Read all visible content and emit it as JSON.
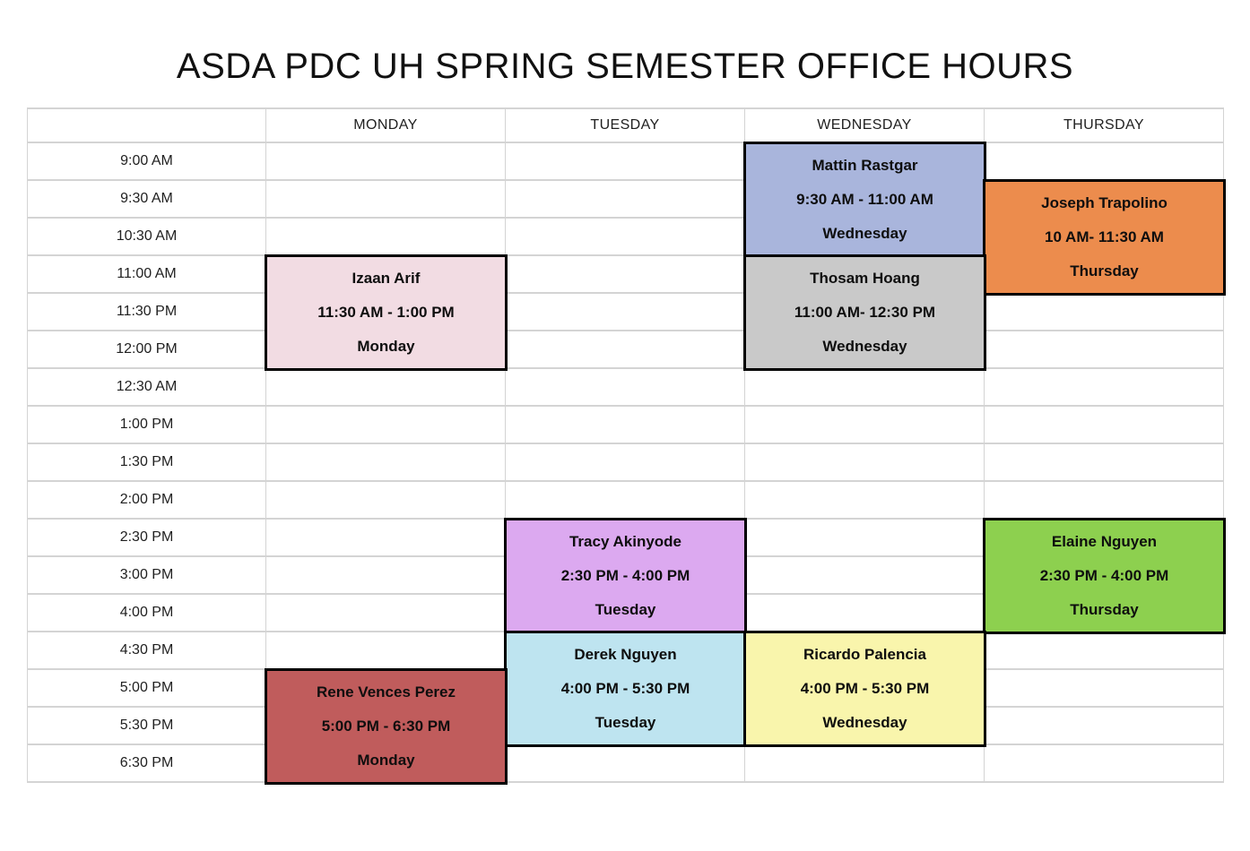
{
  "title": "ASDA PDC UH SPRING SEMESTER OFFICE HOURS",
  "chart_data": {
    "type": "table",
    "title": "ASDA PDC UH SPRING SEMESTER OFFICE HOURS",
    "columns": [
      "",
      "MONDAY",
      "TUESDAY",
      "WEDNESDAY",
      "THURSDAY"
    ],
    "time_slots": [
      "9:00 AM",
      "9:30 AM",
      "10:30 AM",
      "11:00 AM",
      "11:30 PM",
      "12:00 PM",
      "12:30 AM",
      "1:00 PM",
      "1:30 PM",
      "2:00 PM",
      "2:30 PM",
      "3:00 PM",
      "4:00 PM",
      "4:30 PM",
      "5:00 PM",
      "5:30 PM",
      "6:30 PM"
    ],
    "events": [
      {
        "name": "Mattin Rastgar",
        "time": "9:30 AM - 11:00 AM",
        "day": "Wednesday",
        "column": 3,
        "row_start": 1,
        "row_span": 3,
        "fill": "#A9B5DC"
      },
      {
        "name": "Joseph Trapolino",
        "time": "10 AM- 11:30 AM",
        "day": "Thursday",
        "column": 4,
        "row_start": 2,
        "row_span": 3,
        "fill": "#EC8C4D"
      },
      {
        "name": "Izaan Arif",
        "time": "11:30 AM - 1:00 PM",
        "day": "Monday",
        "column": 1,
        "row_start": 4,
        "row_span": 3,
        "fill": "#F2DCE3"
      },
      {
        "name": "Thosam Hoang",
        "time": "11:00 AM- 12:30 PM",
        "day": "Wednesday",
        "column": 3,
        "row_start": 4,
        "row_span": 3,
        "fill": "#C9C9C9"
      },
      {
        "name": "Tracy Akinyode",
        "time": "2:30 PM - 4:00 PM",
        "day": "Tuesday",
        "column": 2,
        "row_start": 11,
        "row_span": 3,
        "fill": "#DCA9F0"
      },
      {
        "name": "Elaine Nguyen",
        "time": "2:30 PM - 4:00 PM",
        "day": "Thursday",
        "column": 4,
        "row_start": 11,
        "row_span": 3,
        "fill": "#8DD04F"
      },
      {
        "name": "Derek Nguyen",
        "time": "4:00 PM - 5:30 PM",
        "day": "Tuesday",
        "column": 2,
        "row_start": 14,
        "row_span": 3,
        "fill": "#BEE4F0"
      },
      {
        "name": "Ricardo Palencia",
        "time": "4:00 PM - 5:30 PM",
        "day": "Wednesday",
        "column": 3,
        "row_start": 14,
        "row_span": 3,
        "fill": "#F9F5AC"
      },
      {
        "name": "Rene Vences Perez",
        "time": "5:00 PM - 6:30 PM",
        "day": "Monday",
        "column": 1,
        "row_start": 15,
        "row_span": 3,
        "fill": "#C05C5C"
      }
    ],
    "colors": {
      "background": "#FFFFFF",
      "grid_line": "#D4D4D4",
      "event_border": "#000000",
      "text": "#111111"
    },
    "layout_hints": {
      "grid": "on",
      "header_row": true,
      "time_axis": "left column, top-to-bottom"
    }
  }
}
